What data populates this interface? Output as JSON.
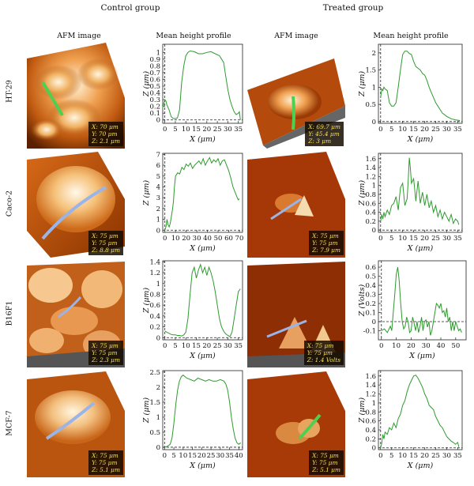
{
  "headers": {
    "control": "Control group",
    "treated": "Treated group",
    "afm_left": "AFM image",
    "profile_left": "Mean height profile",
    "afm_right": "AFM image",
    "profile_right": "Mean height profile"
  },
  "colors": {
    "line": "#2e9a2e",
    "dash": "#222222",
    "info_text": "#f4e25a"
  },
  "rows": [
    {
      "label": "HT-29",
      "control_info": {
        "x": "X: 70 μm",
        "y": "Y: 70 μm",
        "z": "Z: 2.1 μm"
      },
      "treated_info": {
        "x": "X: 69.7 μm",
        "y": "Y: 45.4 μm",
        "z": "Z: 3 μm"
      },
      "control_line_color": "#4fcf4f",
      "treated_line_color": "#4fcf4f"
    },
    {
      "label": "Caco-2",
      "control_info": {
        "x": "X: 75 μm",
        "y": "Y: 75 μm",
        "z": "Z: 8.8 μm"
      },
      "treated_info": {
        "x": "X: 75 μm",
        "y": "Y: 75 μm",
        "z": "Z: 7.9 μm"
      },
      "control_line_color": "#9ab4e8",
      "treated_line_color": "#9ab4e8"
    },
    {
      "label": "B16F1",
      "control_info": {
        "x": "X: 75 μm",
        "y": "Y: 75 μm",
        "z": "Z: 2.3 μm"
      },
      "treated_info": {
        "x": "X: 75 μm",
        "y": "Y: 75 μm",
        "z": "Z: 1.4 Volts"
      },
      "control_line_color": "#9ab4e8",
      "treated_line_color": "#9ab4e8"
    },
    {
      "label": "MCF-7",
      "control_info": {
        "x": "X: 75 μm",
        "y": "Y: 75 μm",
        "z": "Z: 5.1 μm"
      },
      "treated_info": {
        "x": "X: 75 μm",
        "y": "Y: 75 μm",
        "z": "Z: 5.1 μm"
      },
      "control_line_color": "#9ab4e8",
      "treated_line_color": "#4fcf4f"
    }
  ],
  "chart_data": [
    {
      "id": "ht29-control",
      "type": "line",
      "xlabel": "X (μm)",
      "ylabel": "Z (μm)",
      "xlim": [
        -1,
        37
      ],
      "ylim": [
        -0.05,
        1.12
      ],
      "xticks": [
        0,
        5,
        10,
        15,
        20,
        25,
        30,
        35
      ],
      "yticks": [
        0,
        0.1,
        0.2,
        0.3,
        0.4,
        0.5,
        0.6,
        0.7,
        0.8,
        0.9,
        1
      ],
      "dash_x": 0,
      "x": [
        -1,
        0,
        0.5,
        1,
        2,
        3,
        4,
        5,
        6,
        7,
        8,
        9,
        10,
        11,
        12,
        14,
        16,
        18,
        20,
        22,
        24,
        26,
        28,
        29,
        30,
        31,
        32,
        33,
        34,
        35,
        35.5,
        36
      ],
      "y": [
        0.18,
        0.3,
        0.28,
        0.22,
        0.15,
        0.05,
        0.02,
        0.02,
        0.03,
        0.15,
        0.55,
        0.8,
        0.95,
        1.0,
        1.02,
        1.01,
        0.98,
        0.98,
        1.0,
        1.01,
        0.98,
        0.95,
        0.85,
        0.65,
        0.45,
        0.3,
        0.2,
        0.12,
        0.08,
        0.1,
        0.12,
        0.0
      ]
    },
    {
      "id": "ht29-treated",
      "type": "line",
      "xlabel": "X (μm)",
      "ylabel": "Z (μm)",
      "xlim": [
        -1,
        37
      ],
      "ylim": [
        -0.05,
        2.25
      ],
      "xticks": [
        0,
        5,
        10,
        15,
        20,
        25,
        30,
        35
      ],
      "yticks": [
        0,
        0.5,
        1,
        1.5,
        2
      ],
      "dash_x": 0,
      "x": [
        0,
        0.5,
        1,
        1.5,
        2,
        3,
        4,
        5,
        6,
        7,
        8,
        9,
        10,
        11,
        12,
        13,
        14,
        15,
        16,
        17,
        18,
        19,
        20,
        21,
        22,
        23,
        24,
        25,
        26,
        27,
        28,
        30,
        32,
        34,
        35,
        36
      ],
      "y": [
        0.7,
        0.95,
        0.9,
        1.0,
        0.95,
        0.9,
        0.55,
        0.45,
        0.45,
        0.55,
        1.0,
        1.5,
        1.95,
        2.05,
        2.05,
        1.98,
        1.95,
        1.75,
        1.6,
        1.55,
        1.5,
        1.4,
        1.35,
        1.2,
        1.0,
        0.85,
        0.7,
        0.55,
        0.45,
        0.35,
        0.25,
        0.15,
        0.08,
        0.05,
        0.04,
        0.03
      ]
    },
    {
      "id": "caco2-control",
      "type": "line",
      "xlabel": "X (μm)",
      "ylabel": "Z (μm)",
      "xlim": [
        -2,
        73
      ],
      "ylim": [
        -0.2,
        7.1
      ],
      "xticks": [
        0,
        10,
        20,
        30,
        40,
        50,
        60,
        70
      ],
      "yticks": [
        0,
        1,
        2,
        3,
        4,
        5,
        6,
        7
      ],
      "dash_x": 0,
      "x": [
        0,
        1,
        2,
        3,
        4,
        5,
        6,
        7,
        8,
        9,
        10,
        12,
        14,
        16,
        18,
        20,
        22,
        24,
        26,
        28,
        30,
        32,
        34,
        36,
        38,
        40,
        42,
        44,
        46,
        48,
        50,
        52,
        54,
        56,
        58,
        60,
        62,
        64,
        66,
        68,
        69,
        70
      ],
      "y": [
        0.0,
        0.3,
        1.0,
        0.5,
        0.3,
        0.6,
        1.2,
        1.8,
        2.6,
        4.0,
        5.0,
        5.3,
        5.2,
        5.8,
        5.6,
        6.1,
        5.9,
        6.2,
        5.7,
        6.0,
        6.2,
        6.4,
        6.1,
        6.6,
        6.0,
        6.4,
        6.7,
        6.2,
        6.5,
        6.3,
        6.6,
        6.0,
        6.4,
        6.5,
        6.0,
        5.5,
        4.8,
        4.0,
        3.5,
        3.0,
        2.8,
        2.9
      ]
    },
    {
      "id": "caco2-treated",
      "type": "line",
      "xlabel": "X (μm)",
      "ylabel": "Z (μm)",
      "xlim": [
        -1,
        37
      ],
      "ylim": [
        -0.05,
        1.72
      ],
      "xticks": [
        0,
        5,
        10,
        15,
        20,
        25,
        30,
        35
      ],
      "yticks": [
        0,
        0.2,
        0.4,
        0.6,
        0.8,
        1,
        1.2,
        1.4,
        1.6
      ],
      "dash_x": 0,
      "x": [
        0,
        0.5,
        1,
        1.5,
        2,
        3,
        4,
        5,
        6,
        7,
        8,
        9,
        10,
        11,
        12,
        12.5,
        13,
        13.5,
        14,
        15,
        16,
        17,
        18,
        19,
        20,
        21,
        22,
        23,
        24,
        25,
        26,
        27,
        28,
        29,
        30,
        31,
        32,
        33,
        34,
        35,
        35.5
      ],
      "y": [
        0.2,
        0.35,
        0.25,
        0.4,
        0.3,
        0.45,
        0.35,
        0.55,
        0.6,
        0.75,
        0.45,
        0.95,
        1.05,
        0.55,
        0.7,
        1.1,
        1.62,
        1.4,
        1.05,
        1.15,
        0.65,
        1.1,
        0.6,
        0.85,
        0.55,
        0.8,
        0.5,
        0.65,
        0.4,
        0.55,
        0.3,
        0.45,
        0.25,
        0.4,
        0.3,
        0.2,
        0.35,
        0.15,
        0.25,
        0.2,
        0.12
      ]
    },
    {
      "id": "b16f1-control",
      "type": "line",
      "xlabel": "X (μm)",
      "ylabel": "Z (μm)",
      "xlim": [
        -1,
        37
      ],
      "ylim": [
        -0.04,
        1.42
      ],
      "xticks": [
        0,
        5,
        10,
        15,
        20,
        25,
        30,
        35
      ],
      "yticks": [
        0,
        0.2,
        0.4,
        0.6,
        0.8,
        1,
        1.2,
        1.4
      ],
      "dash_x": 0,
      "x": [
        0,
        1,
        2,
        3,
        4,
        5,
        6,
        7,
        8,
        9,
        10,
        11,
        12,
        13,
        14,
        15,
        16,
        17,
        18,
        19,
        20,
        21,
        22,
        23,
        24,
        25,
        26,
        27,
        28,
        29,
        30,
        31,
        32,
        33,
        34,
        35,
        36
      ],
      "y": [
        0.12,
        0.1,
        0.08,
        0.06,
        0.05,
        0.05,
        0.04,
        0.04,
        0.03,
        0.05,
        0.1,
        0.35,
        0.8,
        1.2,
        1.3,
        1.1,
        1.25,
        1.35,
        1.2,
        1.3,
        1.15,
        1.3,
        1.2,
        1.05,
        0.85,
        0.6,
        0.35,
        0.2,
        0.12,
        0.07,
        0.04,
        0.02,
        0.1,
        0.35,
        0.6,
        0.85,
        0.9
      ]
    },
    {
      "id": "b16f1-treated",
      "type": "line",
      "xlabel": "X (μm)",
      "ylabel": "Z (Volts)",
      "xlim": [
        -2,
        57
      ],
      "ylim": [
        -0.2,
        0.67
      ],
      "xticks": [
        0,
        10,
        20,
        30,
        40,
        50
      ],
      "yticks": [
        -0.1,
        0,
        0.1,
        0.2,
        0.3,
        0.4,
        0.5,
        0.6
      ],
      "dash_x": 0,
      "dash_y": 0,
      "x": [
        0,
        2,
        4,
        6,
        7,
        8,
        9,
        10,
        11,
        12,
        13,
        14,
        15,
        16,
        17,
        18,
        19,
        20,
        21,
        22,
        23,
        24,
        25,
        26,
        27,
        28,
        29,
        30,
        31,
        32,
        33,
        34,
        35,
        36,
        37,
        38,
        39,
        40,
        41,
        42,
        43,
        44,
        45,
        46,
        47,
        48,
        49,
        50,
        51,
        52,
        53,
        54
      ],
      "y": [
        -0.1,
        -0.08,
        -0.12,
        -0.05,
        -0.1,
        0.1,
        0.3,
        0.52,
        0.6,
        0.45,
        0.2,
        0.0,
        -0.08,
        -0.05,
        0.05,
        0.0,
        -0.12,
        -0.1,
        0.05,
        -0.02,
        -0.1,
        0.0,
        -0.12,
        -0.05,
        0.05,
        -0.1,
        0.0,
        0.02,
        -0.06,
        0.0,
        -0.15,
        -0.1,
        0.0,
        0.1,
        0.2,
        0.18,
        0.15,
        0.2,
        0.1,
        0.12,
        0.05,
        0.15,
        0.0,
        0.05,
        -0.1,
        0.0,
        -0.1,
        0.0,
        -0.05,
        -0.1,
        -0.08,
        -0.12
      ]
    },
    {
      "id": "mcf7-control",
      "type": "line",
      "xlabel": "X (μm)",
      "ylabel": "Z (μm)",
      "xlim": [
        -1,
        42
      ],
      "ylim": [
        -0.08,
        2.55
      ],
      "xticks": [
        0,
        5,
        10,
        15,
        20,
        25,
        30,
        35,
        40
      ],
      "yticks": [
        0,
        0.5,
        1,
        1.5,
        2,
        2.5
      ],
      "dash_x": 0,
      "x": [
        0,
        1,
        2,
        3,
        4,
        5,
        6,
        7,
        8,
        9,
        10,
        11,
        12,
        14,
        16,
        18,
        20,
        22,
        24,
        26,
        28,
        30,
        32,
        33,
        34,
        35,
        36,
        37,
        38,
        39,
        40,
        41
      ],
      "y": [
        0.0,
        0.02,
        0.05,
        0.1,
        0.3,
        0.8,
        1.4,
        1.9,
        2.2,
        2.35,
        2.4,
        2.35,
        2.3,
        2.25,
        2.2,
        2.3,
        2.25,
        2.2,
        2.25,
        2.2,
        2.2,
        2.25,
        2.2,
        2.1,
        1.9,
        1.5,
        1.0,
        0.6,
        0.3,
        0.15,
        0.1,
        0.15
      ]
    },
    {
      "id": "mcf7-treated",
      "type": "line",
      "xlabel": "X (μm)",
      "ylabel": "Z (μm)",
      "xlim": [
        -1,
        37
      ],
      "ylim": [
        -0.04,
        1.72
      ],
      "xticks": [
        0,
        5,
        10,
        15,
        20,
        25,
        30,
        35
      ],
      "yticks": [
        0,
        0.2,
        0.4,
        0.6,
        0.8,
        1,
        1.2,
        1.4,
        1.6
      ],
      "dash_x": 0,
      "x": [
        0,
        0.5,
        1,
        1.5,
        2,
        3,
        4,
        5,
        6,
        7,
        8,
        9,
        10,
        11,
        12,
        13,
        14,
        15,
        16,
        17,
        18,
        19,
        20,
        21,
        22,
        23,
        24,
        25,
        26,
        27,
        28,
        29,
        30,
        31,
        32,
        33,
        34,
        35,
        35.5
      ],
      "y": [
        0.0,
        0.1,
        0.3,
        0.2,
        0.35,
        0.3,
        0.45,
        0.4,
        0.55,
        0.45,
        0.65,
        0.75,
        0.95,
        1.05,
        1.25,
        1.4,
        1.5,
        1.6,
        1.62,
        1.55,
        1.45,
        1.35,
        1.2,
        1.1,
        0.95,
        0.9,
        0.85,
        0.7,
        0.6,
        0.5,
        0.45,
        0.35,
        0.25,
        0.2,
        0.15,
        0.12,
        0.08,
        0.12,
        0.02
      ]
    }
  ]
}
